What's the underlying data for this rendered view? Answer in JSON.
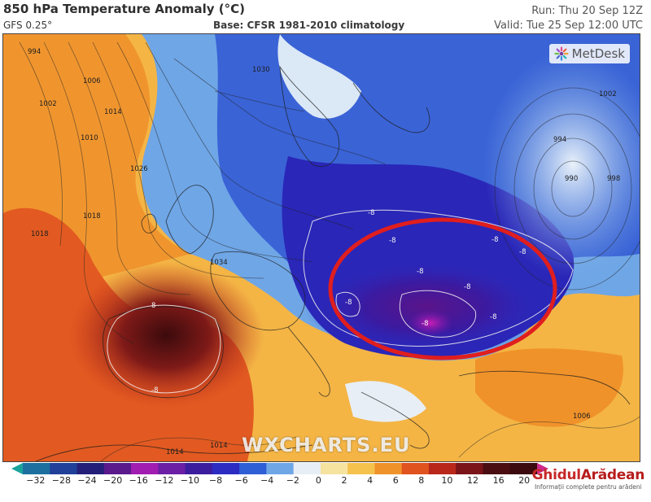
{
  "header": {
    "title": "850 hPa Temperature Anomaly (°C)",
    "model": "GFS 0.25°",
    "base": "Base: CFSR 1981-2010 climatology",
    "run": "Run: Thu 20 Sep 12Z",
    "valid": "Valid: Tue 25 Sep 12:00 UTC"
  },
  "map": {
    "logo": "MetDesk",
    "watermark": "WXCHARTS.EU",
    "isobar_labels": [
      "994",
      "1006",
      "1002",
      "1014",
      "1010",
      "1026",
      "1030",
      "1018",
      "1018",
      "1034",
      "994",
      "990",
      "1002",
      "998",
      "1006",
      "1014",
      "1014"
    ],
    "anomaly_labels": [
      "8",
      "-8",
      "-8",
      "-8",
      "-8",
      "-8",
      "-8",
      "-8",
      "-8",
      "-8",
      "-8"
    ],
    "highlight": "red circle over eastern Europe"
  },
  "legend": {
    "ticks": [
      "−32",
      "−28",
      "−24",
      "−20",
      "−16",
      "−12",
      "−10",
      "−8",
      "−6",
      "−4",
      "−2",
      "0",
      "2",
      "4",
      "6",
      "8",
      "10",
      "12",
      "16",
      "20"
    ],
    "colors": [
      "#1aa39b",
      "#1d6fa0",
      "#21409a",
      "#24207a",
      "#5a1a8c",
      "#a11cb0",
      "#6a1fa5",
      "#3c1d9e",
      "#2c2bc2",
      "#2f5fd6",
      "#6fa6e6",
      "#e8eef5",
      "#f6e3a0",
      "#f5c24e",
      "#f0922a",
      "#e0521e",
      "#b9261a",
      "#7a1418",
      "#4a0e12",
      "#3a0a0e",
      "#cc2a8c"
    ]
  },
  "brand": {
    "name_part1": "Ghidul",
    "name_part2": "Arădean",
    "tagline": "Informații complete pentru arădeni"
  }
}
